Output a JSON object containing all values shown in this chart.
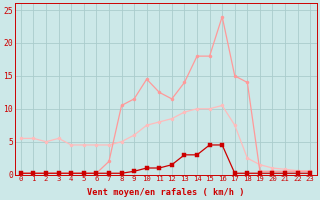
{
  "title": "",
  "xlabel": "Vent moyen/en rafales ( km/h )",
  "ylabel": "",
  "bg_color": "#cce8e8",
  "grid_color": "#aacccc",
  "x": [
    0,
    1,
    2,
    3,
    4,
    5,
    6,
    7,
    8,
    9,
    10,
    11,
    12,
    13,
    14,
    15,
    16,
    17,
    18,
    19,
    20,
    21,
    22,
    23
  ],
  "line_rafales_y": [
    0.2,
    0.2,
    0.2,
    0.2,
    0.2,
    0.2,
    0.2,
    2.0,
    10.5,
    11.5,
    14.5,
    12.5,
    11.5,
    14.0,
    18.0,
    18.0,
    24.0,
    15.0,
    14.0,
    0.5,
    0.5,
    0.5,
    0.5,
    0.5
  ],
  "line_rafales_color": "#ff9999",
  "line_ramp_y": [
    5.5,
    5.5,
    5.0,
    5.5,
    4.5,
    4.5,
    4.5,
    4.5,
    5.0,
    6.0,
    7.5,
    8.0,
    8.5,
    9.5,
    10.0,
    10.0,
    10.5,
    7.5,
    2.5,
    1.5,
    1.0,
    0.8,
    0.6,
    0.5
  ],
  "line_ramp_color": "#ffbbbb",
  "line_moyen_y": [
    0.2,
    0.2,
    0.2,
    0.2,
    0.2,
    0.2,
    0.2,
    0.2,
    0.2,
    0.5,
    1.0,
    1.0,
    1.5,
    3.0,
    3.0,
    4.5,
    4.5,
    0.2,
    0.2,
    0.2,
    0.2,
    0.2,
    0.2,
    0.2
  ],
  "line_moyen_color": "#cc0000",
  "ylim": [
    0,
    26
  ],
  "yticks": [
    0,
    5,
    10,
    15,
    20,
    25
  ],
  "xticks": [
    0,
    1,
    2,
    3,
    4,
    5,
    6,
    7,
    8,
    9,
    10,
    11,
    12,
    13,
    14,
    15,
    16,
    17,
    18,
    19,
    20,
    21,
    22,
    23
  ]
}
